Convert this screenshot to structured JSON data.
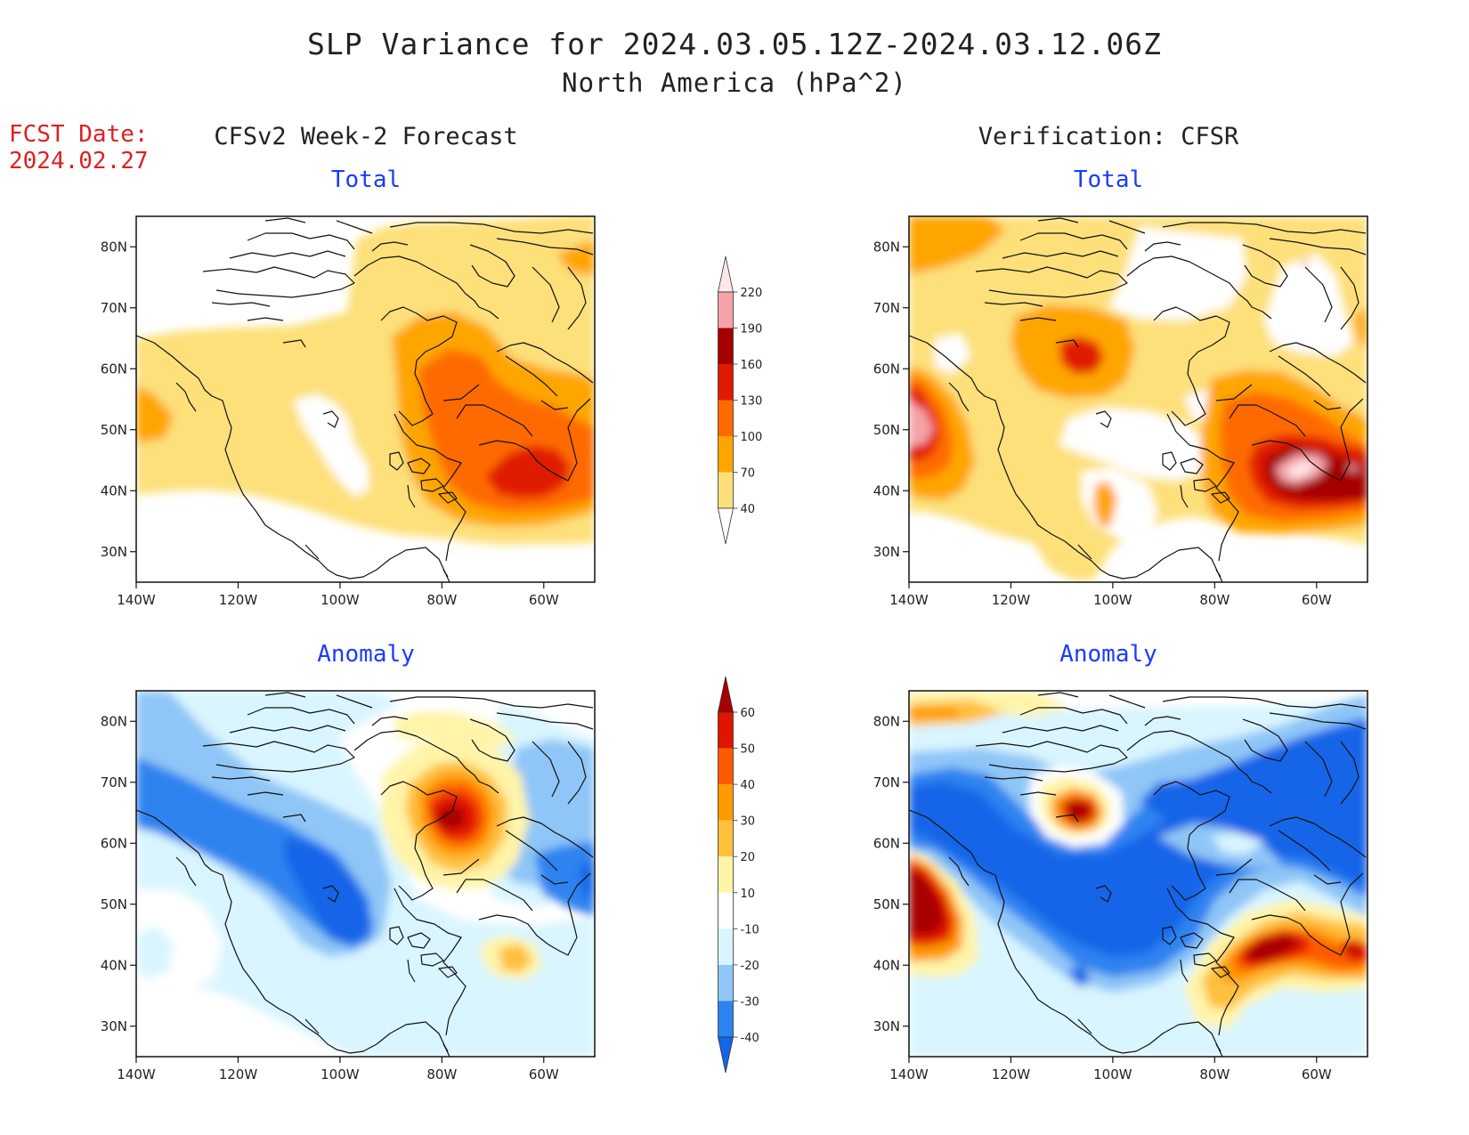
{
  "title": "SLP Variance for 2024.03.05.12Z-2024.03.12.06Z",
  "subtitle": "North America (hPa^2)",
  "fcst_label": "FCST Date:",
  "fcst_date": "2024.02.27",
  "columns": [
    {
      "heading": "CFSv2 Week-2 Forecast"
    },
    {
      "heading": "Verification: CFSR"
    }
  ],
  "rows": [
    {
      "label": "Total"
    },
    {
      "label": "Anomaly"
    }
  ],
  "axes": {
    "lat_labels": [
      "80N",
      "70N",
      "60N",
      "50N",
      "40N",
      "30N"
    ],
    "lon_labels": [
      "140W",
      "120W",
      "100W",
      "80W",
      "60W"
    ],
    "lat_range": [
      25,
      85
    ],
    "lon_range": [
      -140,
      -50
    ]
  },
  "colorbars": {
    "total": {
      "levels": [
        "40",
        "70",
        "100",
        "130",
        "160",
        "190",
        "220"
      ],
      "colors": [
        "#ffffff",
        "#fde07a",
        "#ffa500",
        "#ff6a00",
        "#e01a00",
        "#a50000",
        "#f4a3a7",
        "#ffe8ea"
      ]
    },
    "anomaly": {
      "levels": [
        "-40",
        "-30",
        "-20",
        "-10",
        "10",
        "20",
        "30",
        "40",
        "50",
        "60"
      ],
      "colors": [
        "#1565e8",
        "#2d83f0",
        "#8fc6f7",
        "#d9f5ff",
        "#ffffff",
        "#fff4a8",
        "#ffc03c",
        "#ff9a00",
        "#ff5a00",
        "#e01400",
        "#a80000"
      ]
    }
  },
  "colors": {
    "red_text": "#e02020",
    "blue_text": "#1a3bff"
  }
}
